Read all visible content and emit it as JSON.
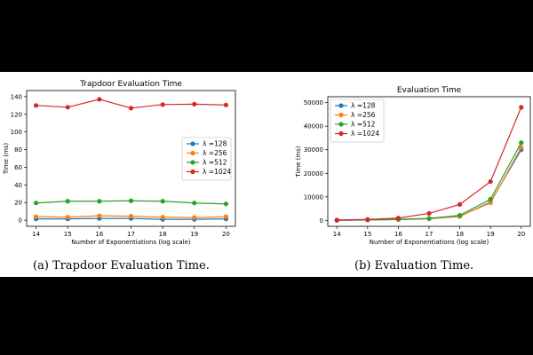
{
  "chart_data": [
    {
      "type": "line",
      "title": "Trapdoor Evaluation Time",
      "xlabel": "Number of Exponentiations (log scale)",
      "ylabel": "Time (ms)",
      "x": [
        14,
        15,
        16,
        17,
        18,
        19,
        20
      ],
      "xlim": [
        14,
        20
      ],
      "ylim": [
        0,
        140
      ],
      "yticks": [
        0,
        20,
        40,
        60,
        80,
        100,
        120,
        140
      ],
      "legend_position": "center-right",
      "series": [
        {
          "name": "λ =128",
          "color": "#1f77b4",
          "values": [
            1.5,
            1.5,
            2,
            2,
            1,
            1,
            1.5
          ]
        },
        {
          "name": "λ =256",
          "color": "#ff7f0e",
          "values": [
            4,
            3.5,
            5,
            4.5,
            3.5,
            3,
            4
          ]
        },
        {
          "name": "λ =512",
          "color": "#2ca02c",
          "values": [
            19.5,
            21.5,
            21.5,
            22,
            21.5,
            19.5,
            18.5
          ]
        },
        {
          "name": "λ =1024",
          "color": "#d62728",
          "values": [
            130,
            128,
            137,
            127,
            131,
            131.5,
            130.5
          ]
        }
      ],
      "caption": "(a) Trapdoor Evaluation Time."
    },
    {
      "type": "line",
      "title": "Evaluation Time",
      "xlabel": "Number of Exponentiations (log scale)",
      "ylabel": "Time (ms)",
      "x": [
        14,
        15,
        16,
        17,
        18,
        19,
        20
      ],
      "xlim": [
        14,
        20
      ],
      "ylim": [
        0,
        50000
      ],
      "yticks": [
        0,
        10000,
        20000,
        30000,
        40000,
        50000
      ],
      "legend_position": "top-left",
      "series": [
        {
          "name": "λ =128",
          "color": "#1f77b4",
          "values": [
            50,
            200,
            400,
            700,
            1700,
            7800,
            30000
          ]
        },
        {
          "name": "λ =256",
          "color": "#ff7f0e",
          "values": [
            80,
            250,
            450,
            800,
            1800,
            7500,
            31000
          ]
        },
        {
          "name": "λ =512",
          "color": "#2ca02c",
          "values": [
            100,
            300,
            500,
            900,
            2200,
            9000,
            33000
          ]
        },
        {
          "name": "λ =1024",
          "color": "#d62728",
          "values": [
            200,
            450,
            1000,
            3000,
            6800,
            16500,
            48000
          ]
        }
      ],
      "caption": "(b) Evaluation Time."
    }
  ]
}
